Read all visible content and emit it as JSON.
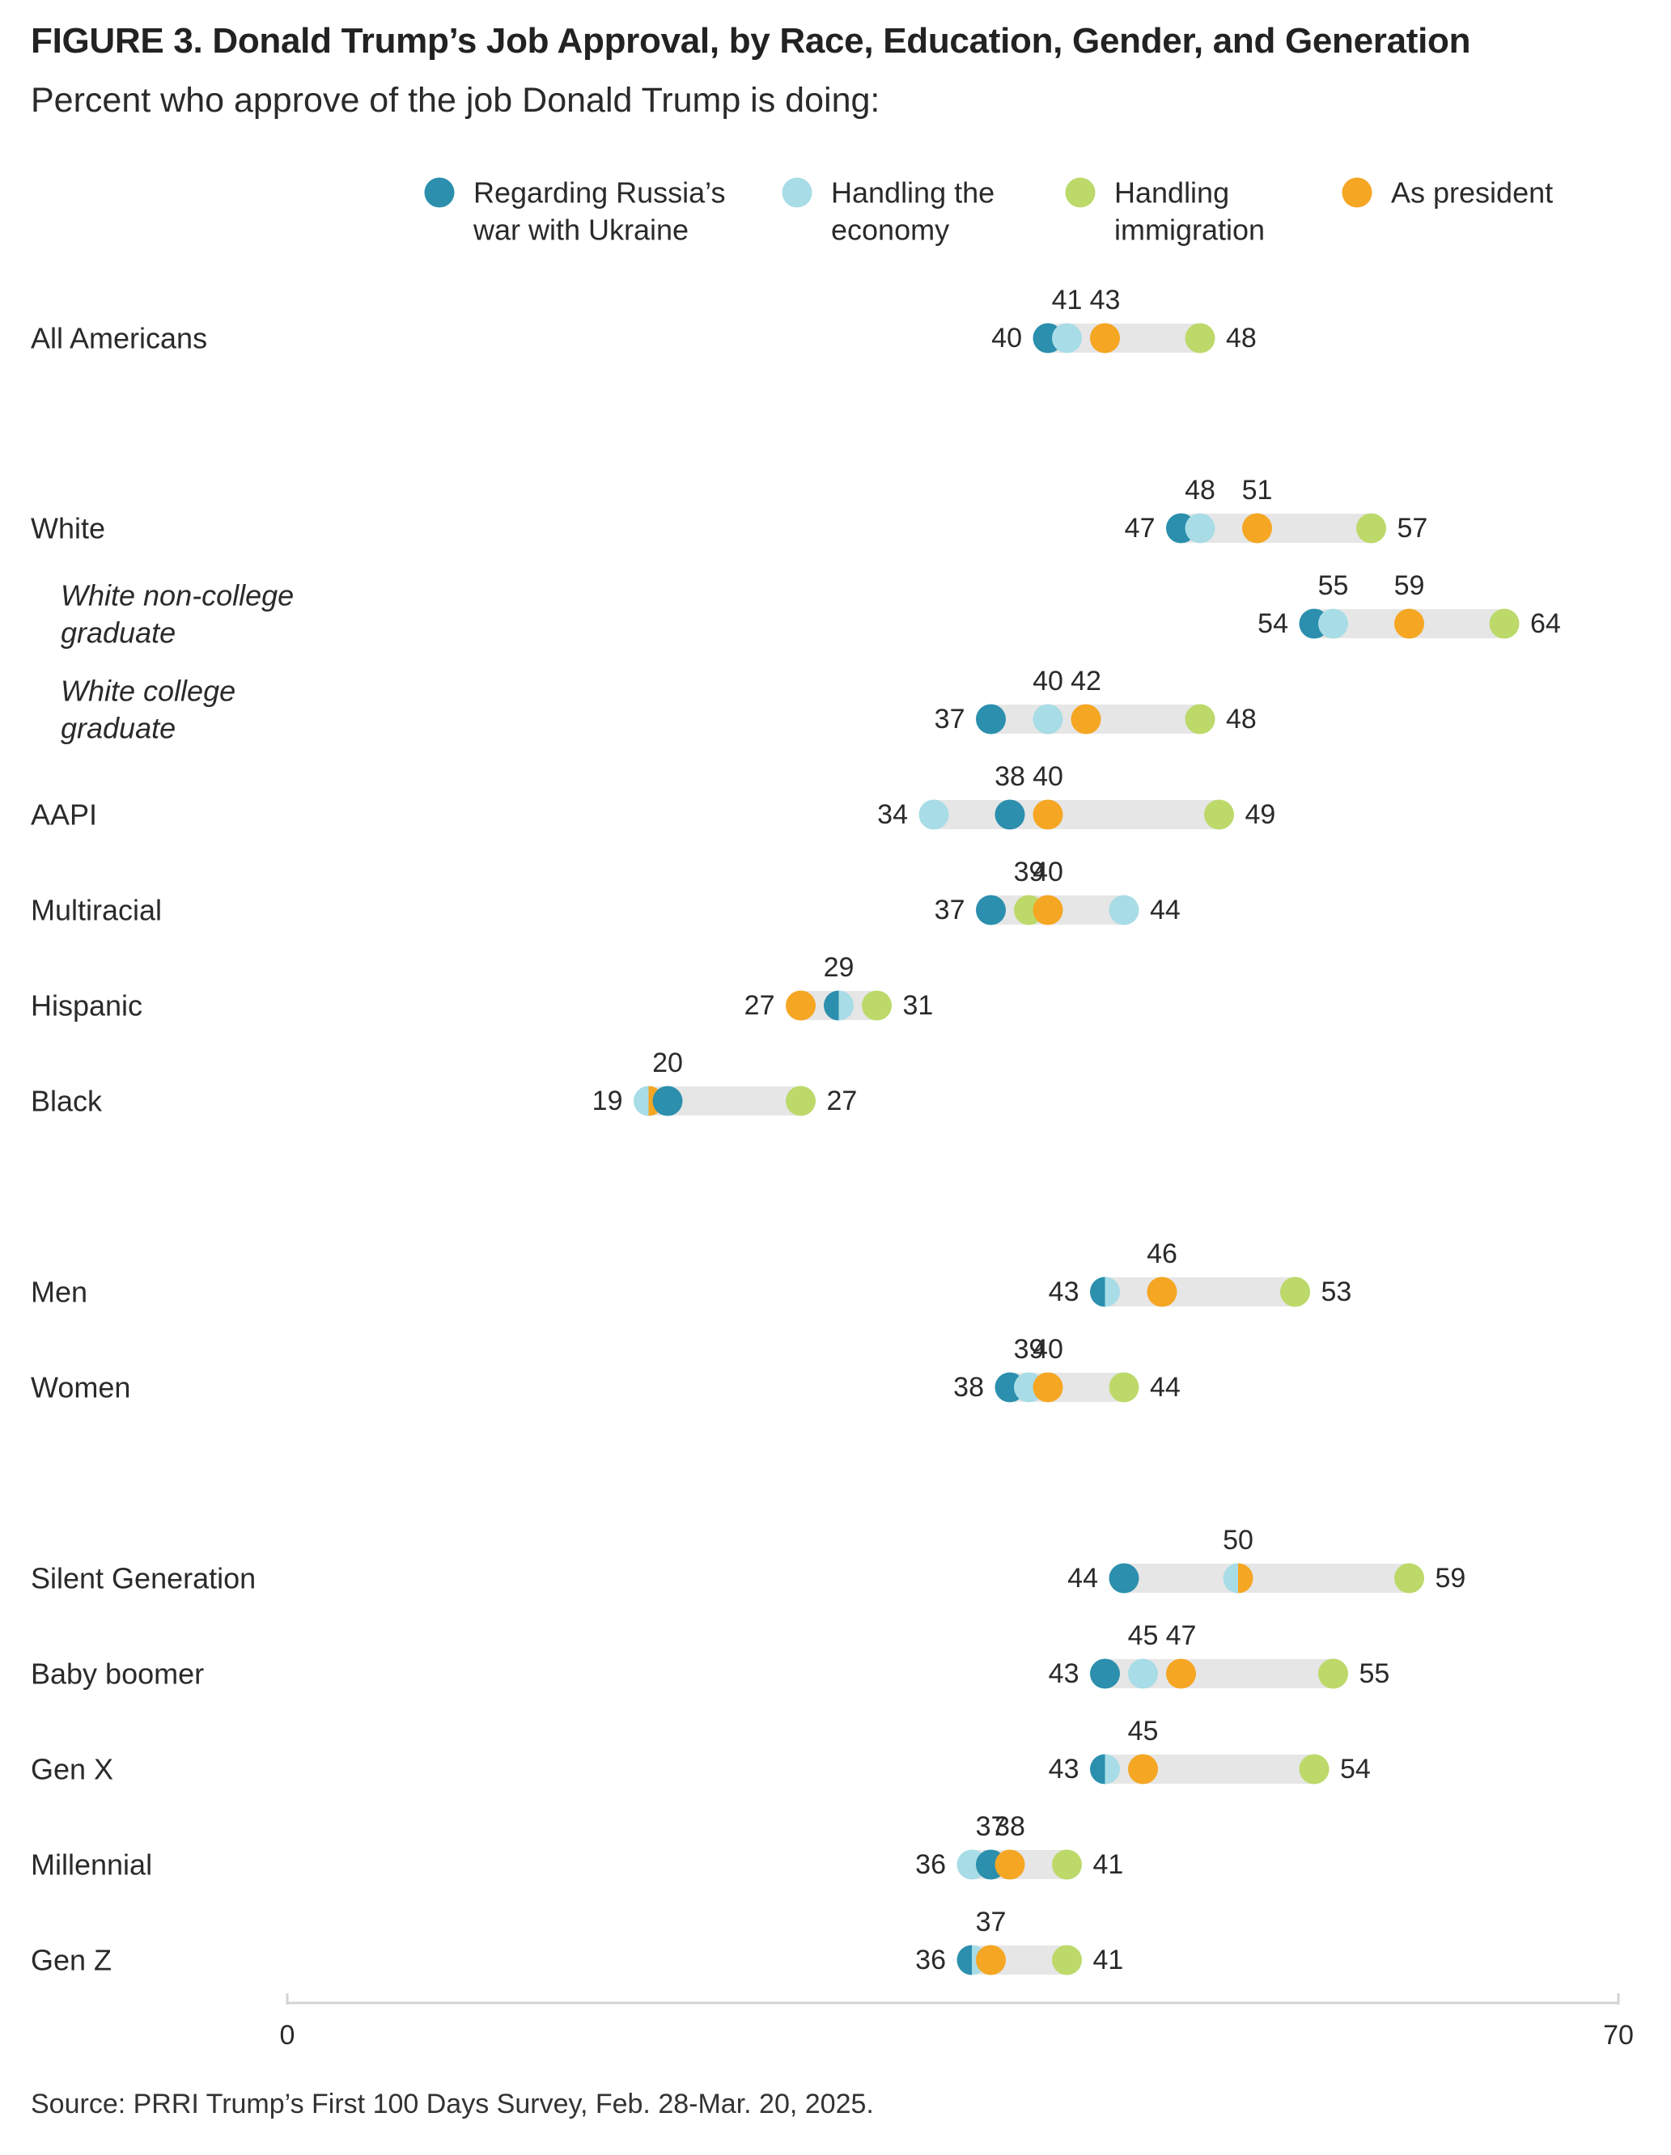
{
  "title": "FIGURE 3.  Donald Trump’s Job Approval, by Race, Education, Gender, and Generation",
  "subtitle": "Percent who approve of the job Donald Trump is doing:",
  "source": "Source: PRRI Trump’s First 100 Days Survey, Feb. 28-Mar. 20, 2025.",
  "chart_data": {
    "type": "scatter",
    "subtype": "dot-range",
    "xlim": [
      0,
      70
    ],
    "x_ticks": [
      "0",
      "70"
    ],
    "legend_position": "top",
    "series": [
      {
        "key": "russia",
        "name_lines": [
          "Regarding Russia’s",
          "war with Ukraine"
        ],
        "color": "#2b8fad"
      },
      {
        "key": "economy",
        "name_lines": [
          "Handling the",
          "economy"
        ],
        "color": "#a8dce6"
      },
      {
        "key": "immigration",
        "name_lines": [
          "Handling",
          "immigration"
        ],
        "color": "#bcd96a"
      },
      {
        "key": "president",
        "name_lines": [
          "As president"
        ],
        "color": "#f5a623"
      }
    ],
    "groups": [
      {
        "label_lines": [
          "All Americans"
        ],
        "italic": false,
        "russia": 40,
        "economy": 41,
        "immigration": 48,
        "president": 43
      },
      {
        "label_lines": [
          "White"
        ],
        "italic": false,
        "russia": 47,
        "economy": 48,
        "immigration": 57,
        "president": 51
      },
      {
        "label_lines": [
          "White non-college",
          "graduate"
        ],
        "italic": true,
        "russia": 54,
        "economy": 55,
        "immigration": 64,
        "president": 59
      },
      {
        "label_lines": [
          "White college",
          "graduate"
        ],
        "italic": true,
        "russia": 37,
        "economy": 40,
        "immigration": 48,
        "president": 42
      },
      {
        "label_lines": [
          "AAPI"
        ],
        "italic": false,
        "russia": 38,
        "economy": 34,
        "immigration": 49,
        "president": 40
      },
      {
        "label_lines": [
          "Multiracial"
        ],
        "italic": false,
        "russia": 37,
        "economy": 44,
        "immigration": 39,
        "president": 40
      },
      {
        "label_lines": [
          "Hispanic"
        ],
        "italic": false,
        "russia": 29,
        "economy": 29,
        "immigration": 31,
        "president": 27
      },
      {
        "label_lines": [
          "Black"
        ],
        "italic": false,
        "russia": 20,
        "economy": 19,
        "immigration": 27,
        "president": 19
      },
      {
        "label_lines": [
          "Men"
        ],
        "italic": false,
        "russia": 43,
        "economy": 43,
        "immigration": 53,
        "president": 46
      },
      {
        "label_lines": [
          "Women"
        ],
        "italic": false,
        "russia": 38,
        "economy": 39,
        "immigration": 44,
        "president": 40
      },
      {
        "label_lines": [
          "Silent Generation"
        ],
        "italic": false,
        "russia": 44,
        "economy": 50,
        "immigration": 59,
        "president": 50
      },
      {
        "label_lines": [
          "Baby boomer"
        ],
        "italic": false,
        "russia": 43,
        "economy": 45,
        "immigration": 55,
        "president": 47
      },
      {
        "label_lines": [
          "Gen X"
        ],
        "italic": false,
        "russia": 43,
        "economy": 43,
        "immigration": 54,
        "president": 45
      },
      {
        "label_lines": [
          "Millennial"
        ],
        "italic": false,
        "russia": 37,
        "economy": 36,
        "immigration": 41,
        "president": 38
      },
      {
        "label_lines": [
          "Gen Z"
        ],
        "italic": false,
        "russia": 36,
        "economy": 36,
        "immigration": 41,
        "president": 37
      }
    ]
  }
}
